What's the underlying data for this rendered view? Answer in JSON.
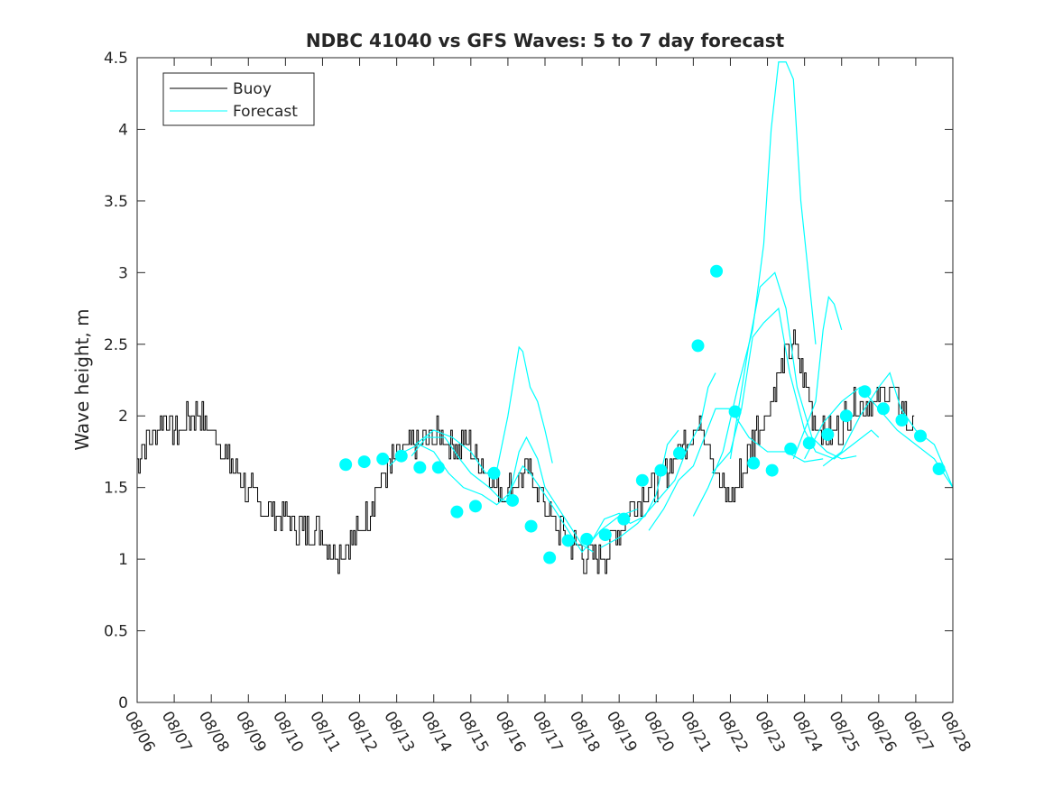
{
  "chart_data": {
    "type": "line",
    "title": "NDBC 41040 vs GFS Waves: 5 to 7 day forecast",
    "xlabel": "",
    "ylabel": "Wave height, m",
    "xlim_days": [
      0,
      22
    ],
    "ylim": [
      0,
      4.5
    ],
    "yticks": [
      0,
      0.5,
      1,
      1.5,
      2,
      2.5,
      3,
      3.5,
      4,
      4.5
    ],
    "ytick_labels": [
      "0",
      "0.5",
      "1",
      "1.5",
      "2",
      "2.5",
      "3",
      "3.5",
      "4",
      "4.5"
    ],
    "xtick_labels": [
      "08/06",
      "08/07",
      "08/08",
      "08/09",
      "08/10",
      "08/11",
      "08/12",
      "08/13",
      "08/14",
      "08/15",
      "08/16",
      "08/17",
      "08/18",
      "08/19",
      "08/20",
      "08/21",
      "08/22",
      "08/23",
      "08/24",
      "08/25",
      "08/26",
      "08/27",
      "08/28"
    ],
    "grid": false,
    "legend": {
      "placement": "top-left",
      "entries": [
        "Buoy",
        "Forecast"
      ]
    },
    "colors": {
      "buoy": "#000000",
      "forecast": "#00FFFF"
    },
    "buoy": {
      "name": "Buoy",
      "x_start_day": 0,
      "x_step_day": 0.25,
      "values": [
        1.7,
        1.8,
        1.9,
        2.0,
        1.9,
        1.9,
        2.0,
        2.0,
        1.9,
        1.8,
        1.7,
        1.6,
        1.5,
        1.4,
        1.35,
        1.3,
        1.3,
        1.25,
        1.2,
        1.2,
        1.2,
        1.1,
        1.05,
        1.1,
        1.2,
        1.3,
        1.5,
        1.6,
        1.7,
        1.75,
        1.8,
        1.8,
        1.85,
        1.85,
        1.8,
        1.8,
        1.8,
        1.7,
        1.6,
        1.5,
        1.45,
        1.55,
        1.6,
        1.55,
        1.4,
        1.25,
        1.2,
        1.1,
        1.05,
        1.0,
        1.0,
        1.05,
        1.2,
        1.3,
        1.4,
        1.45,
        1.5,
        1.55,
        1.7,
        1.8,
        1.9,
        1.95,
        1.8,
        1.5,
        1.4,
        1.55,
        1.7,
        1.9,
        2.0,
        2.2,
        2.4,
        2.5,
        2.3,
        2.0,
        1.9,
        1.85,
        1.9,
        2.05,
        2.1,
        2.1,
        2.1,
        2.2,
        2.1,
        2.0,
        1.9
      ]
    },
    "forecast_points": {
      "name": "Forecast",
      "x_start_day": 5.625,
      "x_step_day": 0.5,
      "values": [
        1.66,
        1.68,
        1.7,
        1.72,
        1.64,
        1.64,
        1.33,
        1.37,
        1.6,
        1.41,
        1.23,
        1.01,
        1.13,
        1.14,
        1.17,
        1.28,
        1.55,
        1.62,
        1.74,
        2.49,
        3.01,
        2.03,
        1.67,
        1.62,
        1.77,
        1.81,
        1.87,
        2.0,
        2.17,
        2.05,
        1.97,
        1.86,
        1.63
      ]
    },
    "forecast_runs": [
      [
        [
          7.5,
          1.8
        ],
        [
          8,
          1.9
        ],
        [
          8.5,
          1.85
        ],
        [
          9,
          1.75
        ],
        [
          9.4,
          1.6
        ],
        [
          9.7,
          1.62
        ],
        [
          10,
          2.0
        ],
        [
          10.3,
          2.48
        ],
        [
          10.4,
          2.45
        ],
        [
          10.6,
          2.2
        ],
        [
          10.8,
          2.1
        ],
        [
          11,
          1.9
        ],
        [
          11.2,
          1.67
        ]
      ],
      [
        [
          7.4,
          1.72
        ],
        [
          7.8,
          1.85
        ],
        [
          8.3,
          1.85
        ],
        [
          8.7,
          1.7
        ],
        [
          9,
          1.6
        ],
        [
          9.5,
          1.5
        ],
        [
          9.8,
          1.42
        ],
        [
          10,
          1.4
        ],
        [
          10.3,
          1.75
        ],
        [
          10.5,
          1.85
        ],
        [
          10.8,
          1.7
        ],
        [
          11,
          1.5
        ],
        [
          11.5,
          1.3
        ],
        [
          12,
          1.1
        ],
        [
          12.3,
          1.05
        ]
      ],
      [
        [
          6.8,
          1.65
        ],
        [
          7.2,
          1.75
        ],
        [
          7.6,
          1.8
        ],
        [
          8,
          1.75
        ],
        [
          8.4,
          1.6
        ],
        [
          8.8,
          1.5
        ],
        [
          9.3,
          1.45
        ],
        [
          9.7,
          1.38
        ],
        [
          10,
          1.45
        ],
        [
          10.4,
          1.65
        ],
        [
          10.6,
          1.6
        ],
        [
          11,
          1.45
        ],
        [
          11.5,
          1.25
        ],
        [
          12,
          1.05
        ],
        [
          12.5,
          1.2
        ],
        [
          13,
          1.3
        ],
        [
          13.5,
          1.35
        ]
      ],
      [
        [
          12.2,
          1.1
        ],
        [
          12.6,
          1.28
        ],
        [
          13,
          1.32
        ],
        [
          13.3,
          1.25
        ],
        [
          13.7,
          1.3
        ],
        [
          14,
          1.45
        ],
        [
          14.3,
          1.8
        ],
        [
          14.6,
          1.9
        ]
      ],
      [
        [
          12.5,
          1.08
        ],
        [
          13,
          1.15
        ],
        [
          13.5,
          1.25
        ],
        [
          14,
          1.4
        ],
        [
          14.5,
          1.55
        ],
        [
          14.8,
          1.75
        ],
        [
          15.2,
          1.95
        ],
        [
          15.4,
          2.2
        ],
        [
          15.6,
          2.3
        ]
      ],
      [
        [
          13.8,
          1.2
        ],
        [
          14.2,
          1.35
        ],
        [
          14.6,
          1.55
        ],
        [
          15,
          1.65
        ],
        [
          15.3,
          1.85
        ],
        [
          15.6,
          2.05
        ],
        [
          16,
          2.05
        ],
        [
          16.5,
          1.85
        ],
        [
          17,
          1.75
        ],
        [
          17.5,
          1.75
        ],
        [
          18,
          1.68
        ],
        [
          18.5,
          1.7
        ]
      ],
      [
        [
          15,
          1.3
        ],
        [
          15.4,
          1.5
        ],
        [
          15.8,
          1.75
        ],
        [
          16.2,
          2.2
        ],
        [
          16.6,
          2.6
        ],
        [
          16.9,
          3.2
        ],
        [
          17.1,
          4.0
        ],
        [
          17.3,
          4.47
        ],
        [
          17.5,
          4.47
        ],
        [
          17.7,
          4.35
        ],
        [
          17.9,
          3.5
        ],
        [
          18.1,
          3.0
        ],
        [
          18.3,
          2.5
        ]
      ],
      [
        [
          15.5,
          1.6
        ],
        [
          16,
          1.75
        ],
        [
          16.3,
          2.05
        ],
        [
          16.6,
          2.55
        ],
        [
          16.9,
          2.65
        ],
        [
          17.3,
          2.75
        ],
        [
          17.6,
          2.3
        ],
        [
          18,
          1.9
        ],
        [
          18.3,
          1.75
        ],
        [
          18.8,
          1.7
        ],
        [
          19.3,
          1.8
        ],
        [
          19.8,
          1.9
        ],
        [
          20,
          1.85
        ]
      ],
      [
        [
          16,
          1.7
        ],
        [
          16.5,
          2.5
        ],
        [
          16.8,
          2.9
        ],
        [
          17.2,
          3.0
        ],
        [
          17.5,
          2.75
        ],
        [
          17.8,
          2.2
        ],
        [
          18.2,
          1.85
        ],
        [
          18.6,
          1.75
        ],
        [
          19,
          1.7
        ],
        [
          19.4,
          1.72
        ]
      ],
      [
        [
          18.5,
          1.65
        ],
        [
          19,
          1.75
        ],
        [
          19.5,
          2.0
        ],
        [
          20,
          2.2
        ],
        [
          20.3,
          2.3
        ],
        [
          20.6,
          2.05
        ],
        [
          21,
          1.9
        ],
        [
          21.5,
          1.8
        ],
        [
          22,
          1.5
        ]
      ],
      [
        [
          17.7,
          1.7
        ],
        [
          18,
          1.9
        ],
        [
          18.3,
          2.1
        ],
        [
          18.5,
          2.6
        ],
        [
          18.65,
          2.83
        ],
        [
          18.8,
          2.78
        ],
        [
          19,
          2.6
        ]
      ],
      [
        [
          18,
          1.7
        ],
        [
          18.5,
          1.95
        ],
        [
          19,
          2.1
        ],
        [
          19.5,
          2.2
        ],
        [
          20,
          2.05
        ],
        [
          20.5,
          1.9
        ],
        [
          21,
          1.8
        ],
        [
          21.5,
          1.7
        ],
        [
          22,
          1.5
        ]
      ]
    ]
  }
}
